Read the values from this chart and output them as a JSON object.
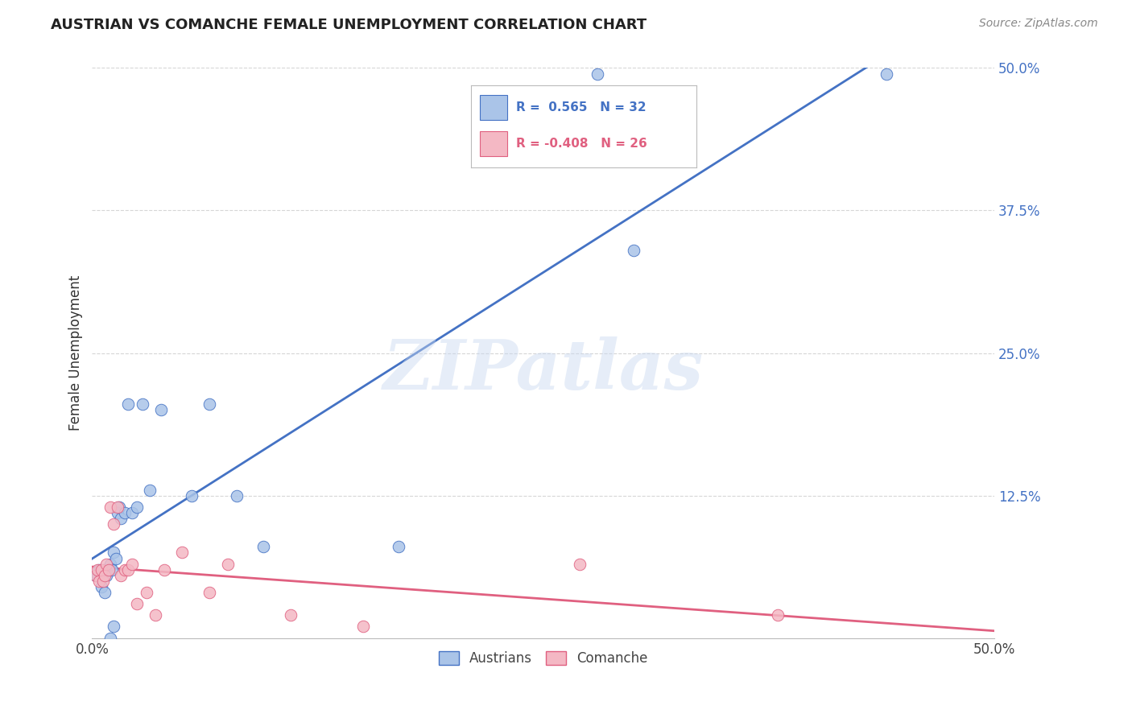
{
  "title": "AUSTRIAN VS COMANCHE FEMALE UNEMPLOYMENT CORRELATION CHART",
  "source": "Source: ZipAtlas.com",
  "ylabel": "Female Unemployment",
  "xlim": [
    0.0,
    0.5
  ],
  "ylim": [
    -0.02,
    0.52
  ],
  "plot_xlim": [
    0.0,
    0.5
  ],
  "plot_ylim": [
    0.0,
    0.5
  ],
  "xticks": [
    0.0,
    0.125,
    0.25,
    0.375,
    0.5
  ],
  "yticks": [
    0.125,
    0.25,
    0.375,
    0.5
  ],
  "ytick_labels": [
    "12.5%",
    "25.0%",
    "37.5%",
    "50.0%"
  ],
  "xtick_labels": [
    "0.0%",
    "",
    "",
    "",
    "50.0%"
  ],
  "background_color": "#ffffff",
  "grid_color": "#cccccc",
  "austrians_color": "#aac4e8",
  "comanche_color": "#f4b8c4",
  "austrians_line_color": "#4472c4",
  "comanche_line_color": "#e06080",
  "watermark_text": "ZIPatlas",
  "legend_austrians_R": "R =  0.565",
  "legend_austrians_N": "N = 32",
  "legend_comanche_R": "R = -0.408",
  "legend_comanche_N": "N = 26",
  "austrians_x": [
    0.002,
    0.003,
    0.004,
    0.005,
    0.006,
    0.007,
    0.008,
    0.009,
    0.01,
    0.011,
    0.012,
    0.013,
    0.014,
    0.015,
    0.016,
    0.018,
    0.02,
    0.022,
    0.025,
    0.028,
    0.032,
    0.038,
    0.055,
    0.065,
    0.08,
    0.095,
    0.17,
    0.28,
    0.3,
    0.44,
    0.01,
    0.012
  ],
  "austrians_y": [
    0.055,
    0.055,
    0.06,
    0.045,
    0.06,
    0.04,
    0.055,
    0.06,
    0.065,
    0.06,
    0.075,
    0.07,
    0.11,
    0.115,
    0.105,
    0.11,
    0.205,
    0.11,
    0.115,
    0.205,
    0.13,
    0.2,
    0.125,
    0.205,
    0.125,
    0.08,
    0.08,
    0.495,
    0.34,
    0.495,
    0.0,
    0.01
  ],
  "comanche_x": [
    0.002,
    0.003,
    0.004,
    0.005,
    0.006,
    0.007,
    0.008,
    0.009,
    0.01,
    0.012,
    0.014,
    0.016,
    0.018,
    0.02,
    0.022,
    0.025,
    0.03,
    0.035,
    0.04,
    0.05,
    0.065,
    0.075,
    0.11,
    0.15,
    0.27,
    0.38
  ],
  "comanche_y": [
    0.055,
    0.06,
    0.05,
    0.06,
    0.05,
    0.055,
    0.065,
    0.06,
    0.115,
    0.1,
    0.115,
    0.055,
    0.06,
    0.06,
    0.065,
    0.03,
    0.04,
    0.02,
    0.06,
    0.075,
    0.04,
    0.065,
    0.02,
    0.01,
    0.065,
    0.02
  ]
}
